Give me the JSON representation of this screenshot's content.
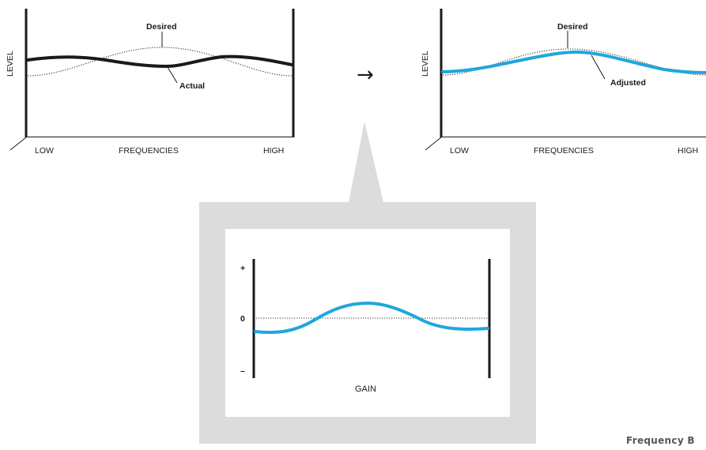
{
  "arrow_glyph": "→",
  "before_panel": {
    "y_axis_label": "LEVEL",
    "x_axis_label": "FREQUENCIES",
    "x_low_label": "LOW",
    "x_high_label": "HIGH",
    "desired_label": "Desired",
    "actual_label": "Actual"
  },
  "after_panel": {
    "y_axis_label": "LEVEL",
    "x_axis_label": "FREQUENCIES",
    "x_low_label": "LOW",
    "x_high_label": "HIGH",
    "desired_label": "Desired",
    "adjusted_label": "Adjusted"
  },
  "gain_panel": {
    "plus_label": "+",
    "zero_label": "0",
    "minus_label": "–",
    "gain_label": "GAIN"
  },
  "caption": "Frequency B",
  "colors": {
    "curve_blue": "#1fa6de",
    "frame_gray": "#dcdcdc",
    "ink": "#1a1a1a"
  }
}
